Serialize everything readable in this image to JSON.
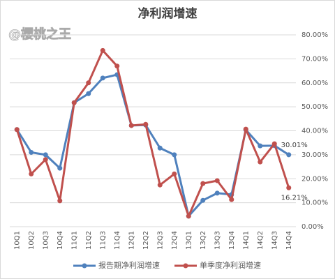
{
  "chart_data": {
    "type": "line",
    "title": "净利润增速",
    "watermark": "@樱桃之王",
    "categories": [
      "10Q1",
      "10Q2",
      "10Q3",
      "10Q4",
      "11Q1",
      "11Q2",
      "11Q3",
      "11Q4",
      "12Q1",
      "12Q2",
      "12Q3",
      "12Q4",
      "13Q1",
      "13Q2",
      "13Q3",
      "13Q4",
      "14Q1",
      "14Q2",
      "14Q3",
      "14Q4"
    ],
    "series": [
      {
        "name": "报告期净利润增速",
        "color": "#4f81bd",
        "values": [
          40.5,
          31,
          30,
          24.4,
          51.7,
          55.5,
          62,
          63.4,
          42.2,
          42.4,
          32.8,
          30,
          4.4,
          11,
          14,
          13.4,
          40.4,
          33.7,
          33.8,
          30.01
        ],
        "value_labels": [
          null,
          null,
          null,
          null,
          null,
          null,
          null,
          null,
          null,
          null,
          null,
          null,
          null,
          null,
          null,
          null,
          null,
          null,
          null,
          "30.01%"
        ]
      },
      {
        "name": "单季度净利润增速",
        "color": "#c0504d",
        "values": [
          40.5,
          22,
          28,
          10.8,
          51.7,
          60,
          73.5,
          67,
          42.2,
          42.7,
          17.4,
          22,
          4.4,
          18,
          19.2,
          11.3,
          40.7,
          27,
          34.6,
          16.21
        ],
        "value_labels": [
          null,
          null,
          null,
          null,
          null,
          null,
          null,
          null,
          null,
          null,
          null,
          null,
          null,
          null,
          null,
          null,
          null,
          null,
          null,
          "16.21%"
        ]
      }
    ],
    "ylim": [
      0,
      80
    ],
    "yticks": [
      {
        "value": 0,
        "label": "0.00%"
      },
      {
        "value": 10,
        "label": "10.00%"
      },
      {
        "value": 20,
        "label": "20.00%"
      },
      {
        "value": 30,
        "label": "30.00%"
      },
      {
        "value": 40,
        "label": "40.00%"
      },
      {
        "value": 50,
        "label": "50.00%"
      },
      {
        "value": 60,
        "label": "60.00%"
      },
      {
        "value": 70,
        "label": "70.00%"
      },
      {
        "value": 80,
        "label": "80.00%"
      }
    ],
    "grid": true,
    "legend": "bottom"
  }
}
